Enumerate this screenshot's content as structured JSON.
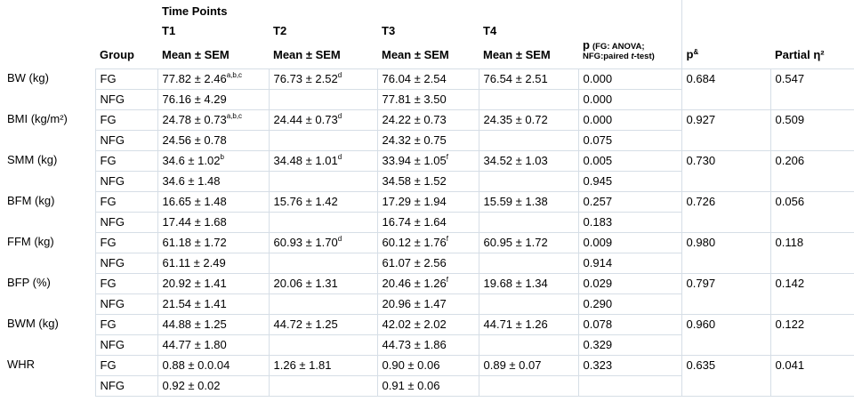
{
  "table": {
    "header": {
      "time_points": "Time Points",
      "group": "Group",
      "t_labels": [
        "T1",
        "T2",
        "T3",
        "T4"
      ],
      "mean_sem": "Mean ± SEM",
      "p": {
        "symbol": "p",
        "note1": "(FG: ANOVA;",
        "note2_pre": "NFG:paired ",
        "note2_italic": "t",
        "note2_post": "-test)"
      },
      "p_amp": {
        "symbol": "p",
        "sup": "&"
      },
      "partial_eta": "Partial η²"
    },
    "rows": [
      {
        "label": "BW (kg)",
        "fg": [
          "FG",
          {
            "v": "77.82 ± 2.46",
            "sup": "a,b,c"
          },
          {
            "v": "76.73 ± 2.52",
            "sup": "d"
          },
          "76.04 ± 2.54",
          "76.54 ± 2.51",
          "0.000"
        ],
        "nfg": [
          "NFG",
          "76.16 ± 4.29",
          "",
          "77.81 ± 3.50",
          "",
          "0.000"
        ],
        "p_amp": "0.684",
        "partial_eta": "0.547"
      },
      {
        "label": "BMI (kg/m²)",
        "fg": [
          "FG",
          {
            "v": "24.78 ± 0.73",
            "sup": "a,b,c"
          },
          {
            "v": "24.44 ± 0.73",
            "sup": "d"
          },
          "24.22 ± 0.73",
          "24.35 ± 0.72",
          "0.000"
        ],
        "nfg": [
          "NFG",
          "24.56 ± 0.78",
          "",
          "24.32 ± 0.75",
          "",
          "0.075"
        ],
        "p_amp": "0.927",
        "partial_eta": "0.509"
      },
      {
        "label": "SMM (kg)",
        "fg": [
          "FG",
          {
            "v": "34.6 ± 1.02",
            "sup": "b"
          },
          {
            "v": "34.48 ± 1.01",
            "sup": "d"
          },
          {
            "v": "33.94 ± 1.05",
            "sup": "f"
          },
          "34.52 ± 1.03",
          "0.005"
        ],
        "nfg": [
          "NFG",
          "34.6 ± 1.48",
          "",
          "34.58 ± 1.52",
          "",
          "0.945"
        ],
        "p_amp": "0.730",
        "partial_eta": "0.206"
      },
      {
        "label": "BFM (kg)",
        "fg": [
          "FG",
          "16.65 ± 1.48",
          "15.76 ± 1.42",
          "17.29 ± 1.94",
          "15.59 ± 1.38",
          "0.257"
        ],
        "nfg": [
          "NFG",
          "17.44 ± 1.68",
          "",
          "16.74 ± 1.64",
          "",
          "0.183"
        ],
        "p_amp": "0.726",
        "partial_eta": "0.056"
      },
      {
        "label": "FFM (kg)",
        "fg": [
          "FG",
          "61.18 ± 1.72",
          {
            "v": "60.93 ± 1.70",
            "sup": "d"
          },
          {
            "v": "60.12 ± 1.76",
            "sup": "f"
          },
          "60.95 ± 1.72",
          "0.009"
        ],
        "nfg": [
          "NFG",
          "61.11 ± 2.49",
          "",
          "61.07 ± 2.56",
          "",
          "0.914"
        ],
        "p_amp": "0.980",
        "partial_eta": "0.118"
      },
      {
        "label": "BFP (%)",
        "fg": [
          "FG",
          "20.92 ± 1.41",
          "20.06 ± 1.31",
          {
            "v": "20.46 ± 1.26",
            "sup": "f"
          },
          "19.68 ± 1.34",
          "0.029"
        ],
        "nfg": [
          "NFG",
          "21.54 ± 1.41",
          "",
          "20.96 ± 1.47",
          "",
          "0.290"
        ],
        "p_amp": "0.797",
        "partial_eta": "0.142"
      },
      {
        "label": "BWM (kg)",
        "fg": [
          "FG",
          "44.88 ± 1.25",
          "44.72 ± 1.25",
          "42.02 ± 2.02",
          "44.71 ± 1.26",
          "0.078"
        ],
        "nfg": [
          "NFG",
          "44.77 ± 1.80",
          "",
          "44.73 ± 1.86",
          "",
          "0.329"
        ],
        "p_amp": "0.960",
        "partial_eta": "0.122"
      },
      {
        "label": "WHR",
        "fg": [
          "FG",
          "0.88 ± 0.0.04",
          "1.26 ± 1.81",
          "0.90 ± 0.06",
          "0.89 ± 0.07",
          "0.323"
        ],
        "nfg": [
          "NFG",
          "0.92 ± 0.02",
          "",
          "0.91 ± 0.06",
          "",
          ""
        ],
        "p_amp": "0.635",
        "partial_eta": "0.041"
      }
    ]
  }
}
